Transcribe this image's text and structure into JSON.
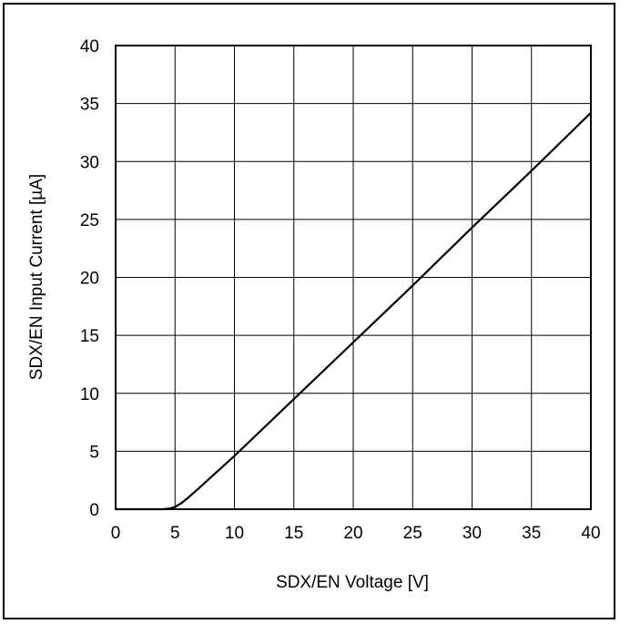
{
  "chart_data": {
    "type": "line",
    "title": "",
    "xlabel": "SDX/EN Voltage [V]",
    "ylabel": "SDX/EN Input Current [µA]",
    "xlim": [
      0,
      40
    ],
    "ylim": [
      0,
      40
    ],
    "xticks": [
      "0",
      "5",
      "10",
      "15",
      "20",
      "25",
      "30",
      "35",
      "40"
    ],
    "yticks": [
      "0",
      "5",
      "10",
      "15",
      "20",
      "25",
      "30",
      "35",
      "40"
    ],
    "grid": true,
    "legend": "none",
    "series": [
      {
        "color": "#000000",
        "x": [
          0,
          4,
          4.5,
          5,
          5.5,
          6,
          6.5,
          7,
          10,
          15,
          20,
          25,
          30,
          35,
          40
        ],
        "y": [
          0,
          0,
          0.05,
          0.2,
          0.5,
          0.9,
          1.35,
          1.8,
          4.6,
          9.5,
          14.4,
          19.3,
          24.3,
          29.2,
          34.2
        ]
      }
    ]
  }
}
